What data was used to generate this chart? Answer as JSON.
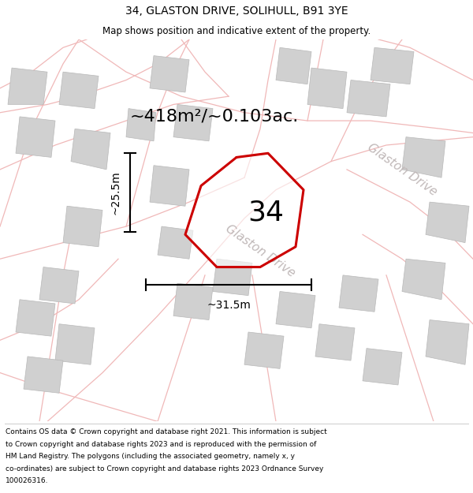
{
  "title": "34, GLASTON DRIVE, SOLIHULL, B91 3YE",
  "subtitle": "Map shows position and indicative extent of the property.",
  "area_label": "~418m²/~0.103ac.",
  "plot_number": "34",
  "width_label": "~31.5m",
  "height_label": "~25.5m",
  "footer_lines": [
    "Contains OS data © Crown copyright and database right 2021. This information is subject",
    "to Crown copyright and database rights 2023 and is reproduced with the permission of",
    "HM Land Registry. The polygons (including the associated geometry, namely x, y",
    "co-ordinates) are subject to Crown copyright and database rights 2023 Ordnance Survey",
    "100026316."
  ],
  "map_bg": "#ffffff",
  "road_color": "#f0b8b8",
  "building_color": "#d0d0d0",
  "building_edge": "#b8b8b8",
  "plot_color": "#cc0000",
  "road_label_color": "#c0b8b8",
  "road_label_diag": "Glaston Drive",
  "road_label_right": "Glaston Drive",
  "title_fontsize": 10,
  "subtitle_fontsize": 8.5,
  "area_fontsize": 16,
  "plot_num_fontsize": 26,
  "meas_fontsize": 10,
  "road_label_fontsize": 11
}
